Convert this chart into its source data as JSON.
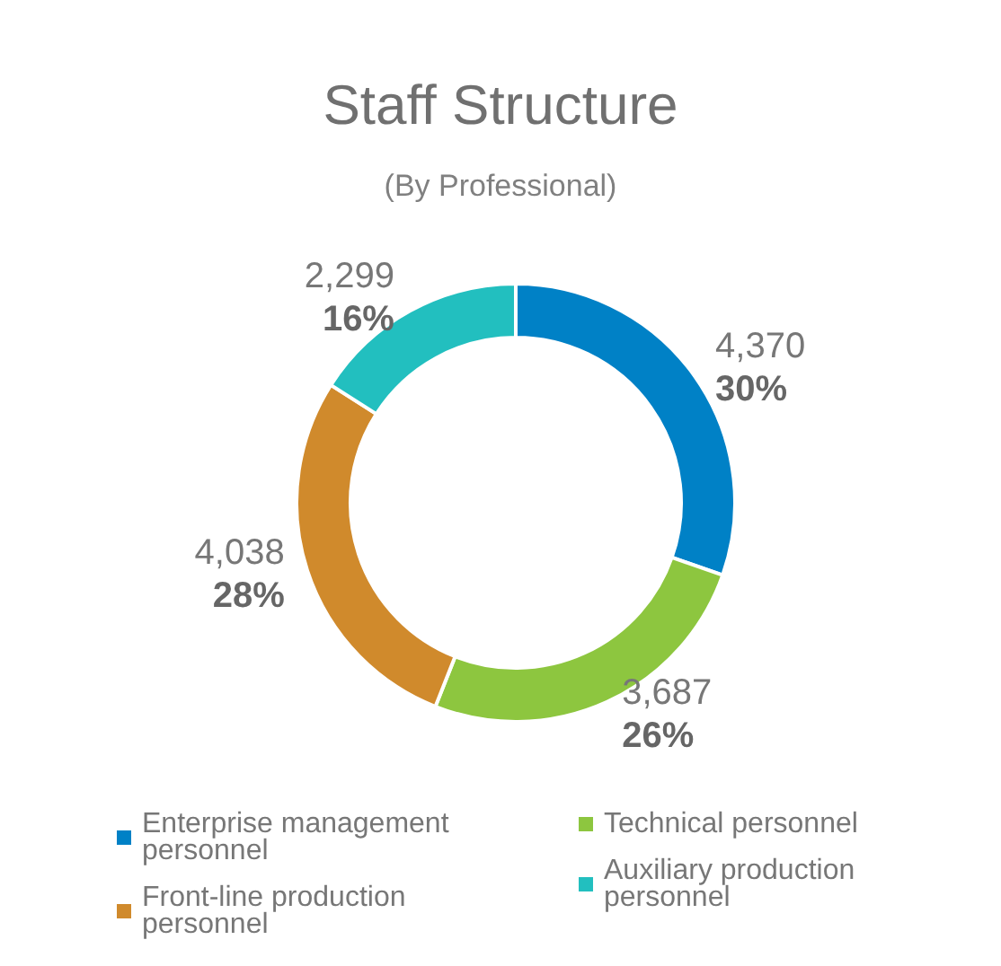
{
  "chart_data": {
    "type": "donut",
    "title": "Staff Structure",
    "subtitle": "(By Professional)",
    "categories": [
      "Enterprise management personnel",
      "Technical personnel",
      "Front-line production personnel",
      "Auxiliary production personnel"
    ],
    "values": [
      4370,
      3687,
      4038,
      2299
    ],
    "colors": [
      "#0081c6",
      "#8dc63f",
      "#d08a2c",
      "#22bfbf"
    ],
    "value_labels": [
      "4,370\n30%",
      "3,687\n26%",
      "4,038\n28%",
      "2,299\n16%"
    ],
    "legend": "bottom"
  }
}
